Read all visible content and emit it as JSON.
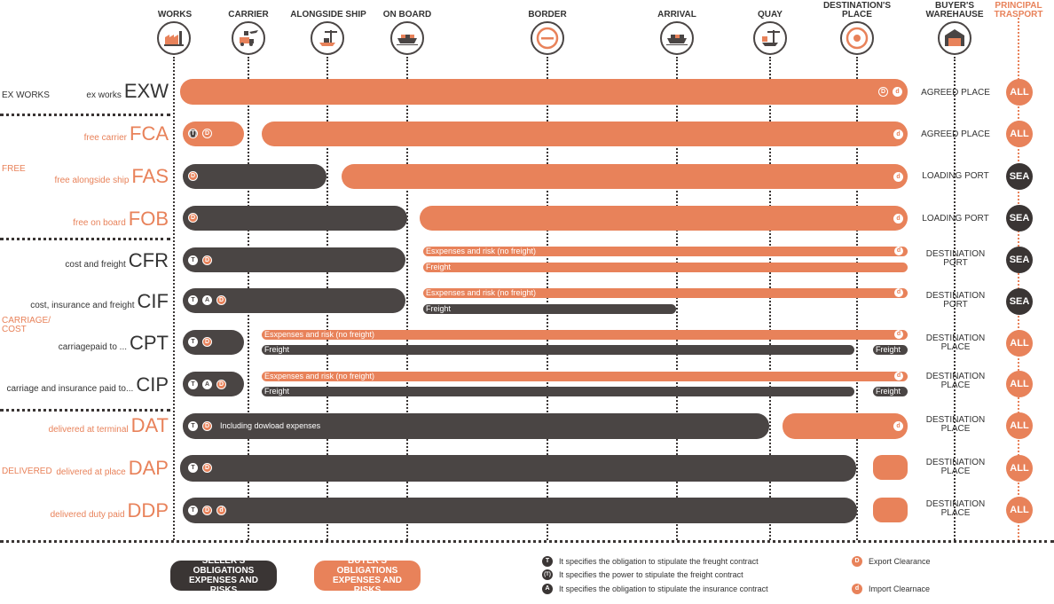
{
  "columns": [
    {
      "label": "WORKS",
      "icon": "factory-icon"
    },
    {
      "label": "CARRIER",
      "icon": "truck-plane-icon"
    },
    {
      "label": "ALONGSIDE SHIP",
      "icon": "crane-icon"
    },
    {
      "label": "ON BOARD",
      "icon": "cargo-ship-icon"
    },
    {
      "label": "BORDER",
      "icon": "border-icon"
    },
    {
      "label": "ARRIVAL",
      "icon": "arriving-ship-icon"
    },
    {
      "label": "QUAY",
      "icon": "quay-crane-icon"
    },
    {
      "label": "DESTINATION'S PLACE",
      "icon": "target-icon"
    },
    {
      "label": "BUYER'S WAREHAUSE",
      "icon": "warehouse-icon"
    },
    {
      "label": "PRINCIPAL TRASPORT"
    }
  ],
  "groups": [
    "EX WORKS",
    "FREE",
    "CARRIAGE/ COST",
    "DELIVERED"
  ],
  "terms": [
    {
      "code": "EXW",
      "desc": "ex works",
      "place": "AGREED PLACE",
      "transport": "ALL"
    },
    {
      "code": "FCA",
      "desc": "free carrier",
      "place": "AGREED PLACE",
      "transport": "ALL"
    },
    {
      "code": "FAS",
      "desc": "free alongside ship",
      "place": "LOADING PORT",
      "transport": "SEA"
    },
    {
      "code": "FOB",
      "desc": "free on board",
      "place": "LOADING PORT",
      "transport": "SEA"
    },
    {
      "code": "CFR",
      "desc": "cost and freight",
      "place": "DESTINATION PORT",
      "transport": "SEA"
    },
    {
      "code": "CIF",
      "desc": "cost, insurance and freight",
      "place": "DESTINATION PORT",
      "transport": "SEA"
    },
    {
      "code": "CPT",
      "desc": "carriagepaid to ...",
      "place": "DESTINATION PLACE",
      "transport": "ALL"
    },
    {
      "code": "CIP",
      "desc": "carriage and insurance paid to...",
      "place": "DESTINATION PLACE",
      "transport": "ALL"
    },
    {
      "code": "DAT",
      "desc": "delivered at terminal",
      "place": "DESTINATION PLACE",
      "transport": "ALL"
    },
    {
      "code": "DAP",
      "desc": "delivered at place",
      "place": "DESTINATION PLACE",
      "transport": "ALL"
    },
    {
      "code": "DDP",
      "desc": "delivered duty paid",
      "place": "DESTINATION PLACE",
      "transport": "ALL"
    }
  ],
  "bar_text": {
    "expenses_risk": "Esxpenses and risk (no freight)",
    "freight": "Freight",
    "including_download": "Including dowload expenses"
  },
  "badges": {
    "T": "T",
    "Tp": "(T)",
    "A": "A",
    "D": "D",
    "d": "d"
  },
  "legend": {
    "seller": "SELLER'S OBLIGATIONS EXPENSES AND RISKS",
    "buyer": "BUYER'S OBLIGATIONS EXPENSES AND RISKS",
    "t_desc": "It specifies the obligation to stipulate the freught contract",
    "tp_desc": "It specifies the power to stipulate the freight contract",
    "a_desc": "It specifies the obligation to stipulate the insurance contract",
    "export": "Export Clearance",
    "import": "Import Clearnace"
  },
  "colors": {
    "seller": "#4a4544",
    "buyer": "#e8825a"
  }
}
